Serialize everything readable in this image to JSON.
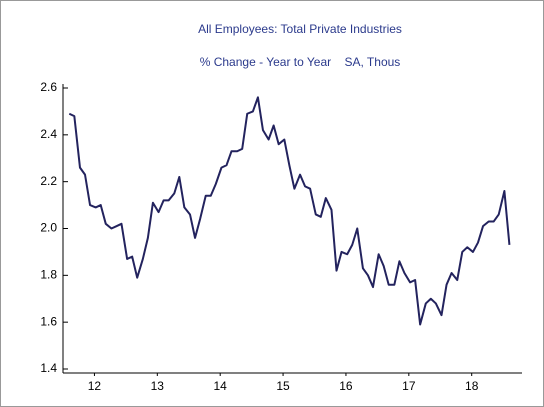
{
  "chart_data": {
    "type": "line",
    "title": "All Employees: Total Private Industries",
    "subtitle": "% Change - Year to Year    SA, Thous",
    "x": [
      12.1,
      12.18,
      12.27,
      12.35,
      12.43,
      12.52,
      12.6,
      12.68,
      12.77,
      12.85,
      12.93,
      13.02,
      13.1,
      13.18,
      13.27,
      13.35,
      13.43,
      13.52,
      13.6,
      13.68,
      13.77,
      13.85,
      13.93,
      14.02,
      14.1,
      14.18,
      14.27,
      14.35,
      14.43,
      14.52,
      14.6,
      14.68,
      14.77,
      14.85,
      14.93,
      15.02,
      15.1,
      15.18,
      15.27,
      15.35,
      15.43,
      15.52,
      15.6,
      15.68,
      15.77,
      15.85,
      15.93,
      16.02,
      16.1,
      16.18,
      16.27,
      16.35,
      16.43,
      16.52,
      16.6,
      16.68,
      16.77,
      16.85,
      16.93,
      17.02,
      17.1,
      17.18,
      17.27,
      17.35,
      17.43,
      17.52,
      17.6,
      17.68,
      17.77,
      17.85,
      17.93,
      18.02,
      18.1,
      18.18,
      18.27,
      18.35,
      18.43,
      18.52,
      18.6,
      18.68,
      18.77,
      18.85,
      18.93,
      19.02,
      19.1
    ],
    "series": [
      {
        "name": "All Employees",
        "color": "#23235e",
        "values": [
          2.49,
          2.48,
          2.26,
          2.23,
          2.1,
          2.09,
          2.1,
          2.02,
          2.0,
          2.01,
          2.02,
          1.87,
          1.88,
          1.79,
          1.87,
          1.96,
          2.11,
          2.07,
          2.12,
          2.12,
          2.15,
          2.22,
          2.09,
          2.06,
          1.96,
          2.04,
          2.14,
          2.14,
          2.19,
          2.26,
          2.27,
          2.33,
          2.33,
          2.34,
          2.49,
          2.5,
          2.56,
          2.42,
          2.38,
          2.44,
          2.36,
          2.38,
          2.27,
          2.17,
          2.23,
          2.18,
          2.17,
          2.06,
          2.05,
          2.13,
          2.08,
          1.82,
          1.9,
          1.89,
          1.93,
          2.0,
          1.83,
          1.8,
          1.75,
          1.89,
          1.84,
          1.76,
          1.76,
          1.86,
          1.81,
          1.77,
          1.78,
          1.59,
          1.68,
          1.7,
          1.68,
          1.63,
          1.76,
          1.81,
          1.78,
          1.9,
          1.92,
          1.9,
          1.94,
          2.01,
          2.03,
          2.03,
          2.06,
          2.16,
          1.93
        ]
      }
    ],
    "xlim": [
      12,
      19.3
    ],
    "xticks": [
      {
        "value": 12.5,
        "label": "12"
      },
      {
        "value": 13.5,
        "label": "13"
      },
      {
        "value": 14.5,
        "label": "14"
      },
      {
        "value": 15.5,
        "label": "15"
      },
      {
        "value": 16.5,
        "label": "16"
      },
      {
        "value": 17.5,
        "label": "17"
      },
      {
        "value": 18.5,
        "label": "18"
      }
    ],
    "ylim": [
      1.4,
      2.6
    ],
    "yticks": [
      {
        "value": 1.4,
        "label": "1.4"
      },
      {
        "value": 1.6,
        "label": "1.6"
      },
      {
        "value": 1.8,
        "label": "1.8"
      },
      {
        "value": 2.0,
        "label": "2.0"
      },
      {
        "value": 2.2,
        "label": "2.2"
      },
      {
        "value": 2.4,
        "label": "2.4"
      },
      {
        "value": 2.6,
        "label": "2.6"
      }
    ],
    "grid": false
  }
}
